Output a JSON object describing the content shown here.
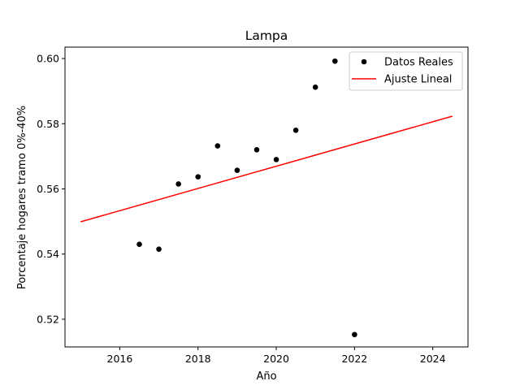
{
  "chart_data": {
    "type": "scatter",
    "title": "Lampa",
    "xlabel": "Año",
    "ylabel": "Porcentaje hogares tramo 0%-40%",
    "xlim": [
      2014.6,
      2024.9
    ],
    "ylim": [
      0.5115,
      0.6035
    ],
    "x_ticks": [
      2016,
      2018,
      2020,
      2022,
      2024
    ],
    "y_ticks": [
      0.52,
      0.54,
      0.56,
      0.58,
      0.6
    ],
    "x_tick_labels": [
      "2016",
      "2018",
      "2020",
      "2022",
      "2024"
    ],
    "y_tick_labels": [
      "0.52",
      "0.54",
      "0.56",
      "0.58",
      "0.60"
    ],
    "grid": false,
    "legend_position": "top-right",
    "series": [
      {
        "name": "Datos Reales",
        "kind": "scatter",
        "color": "#000000",
        "points": [
          {
            "x": 2016.5,
            "y": 0.543
          },
          {
            "x": 2017.0,
            "y": 0.5415
          },
          {
            "x": 2017.5,
            "y": 0.5615
          },
          {
            "x": 2018.0,
            "y": 0.5637
          },
          {
            "x": 2018.5,
            "y": 0.5732
          },
          {
            "x": 2019.0,
            "y": 0.5657
          },
          {
            "x": 2019.5,
            "y": 0.572
          },
          {
            "x": 2020.0,
            "y": 0.569
          },
          {
            "x": 2020.5,
            "y": 0.578
          },
          {
            "x": 2021.0,
            "y": 0.5912
          },
          {
            "x": 2021.5,
            "y": 0.5992
          },
          {
            "x": 2022.0,
            "y": 0.5153
          }
        ]
      },
      {
        "name": "Ajuste Lineal",
        "kind": "line",
        "color": "#ff0000",
        "points": [
          {
            "x": 2015.0,
            "y": 0.5499
          },
          {
            "x": 2024.5,
            "y": 0.5823
          }
        ]
      }
    ]
  }
}
